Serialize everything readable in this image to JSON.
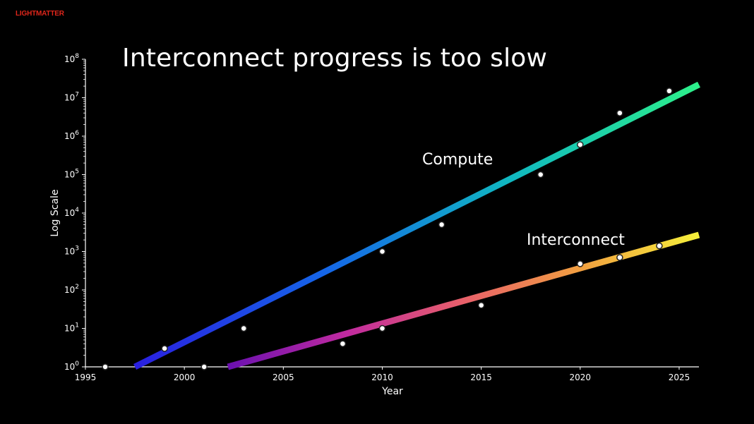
{
  "brand": {
    "logo_text": "LIGHTMATTER",
    "logo_color": "#e0261b"
  },
  "chart_data": {
    "type": "scatter",
    "title": "Interconnect progress is too slow",
    "xlabel": "Year",
    "ylabel": "Log Scale",
    "yscale": "log",
    "xlim": [
      1995,
      2026
    ],
    "ylim_exponents": [
      0,
      8
    ],
    "x_ticks": [
      1995,
      2000,
      2005,
      2010,
      2015,
      2020,
      2025
    ],
    "y_tick_exponents": [
      0,
      1,
      2,
      3,
      4,
      5,
      6,
      7,
      8
    ],
    "grid": false,
    "background": "#000000",
    "series": [
      {
        "name": "Compute",
        "points": [
          {
            "x": 1996,
            "y": 1
          },
          {
            "x": 1999,
            "y": 3
          },
          {
            "x": 2001,
            "y": 1
          },
          {
            "x": 2003,
            "y": 10
          },
          {
            "x": 2010,
            "y": 1000
          },
          {
            "x": 2013,
            "y": 5000
          },
          {
            "x": 2018,
            "y": 100000
          },
          {
            "x": 2020,
            "y": 600000
          },
          {
            "x": 2022,
            "y": 4000000
          },
          {
            "x": 2024.5,
            "y": 15000000
          }
        ],
        "trend": {
          "start": {
            "x": 1997.5,
            "y": 1
          },
          "end": {
            "x": 2026,
            "y": 22000000
          }
        },
        "gradient": [
          "#2a1fe0",
          "#1565e8",
          "#10b8c0",
          "#2df08a"
        ]
      },
      {
        "name": "Interconnect",
        "points": [
          {
            "x": 2008,
            "y": 4
          },
          {
            "x": 2010,
            "y": 10
          },
          {
            "x": 2015,
            "y": 40
          },
          {
            "x": 2020,
            "y": 480
          },
          {
            "x": 2022,
            "y": 700
          },
          {
            "x": 2024,
            "y": 1400
          }
        ],
        "trend": {
          "start": {
            "x": 2002.2,
            "y": 1
          },
          "end": {
            "x": 2026,
            "y": 2700
          }
        },
        "gradient": [
          "#6a10b0",
          "#c02aa0",
          "#e8606a",
          "#f2a040",
          "#f5f03a"
        ]
      }
    ]
  }
}
